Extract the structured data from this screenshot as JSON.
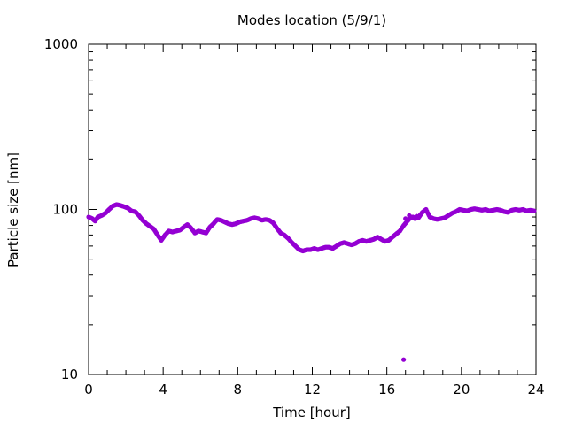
{
  "chart_data": {
    "type": "scatter",
    "title": "Modes location (5/9/1)",
    "xlabel": "Time [hour]",
    "ylabel": "Particle size [nm]",
    "xlim": [
      0,
      24
    ],
    "ylim": [
      10,
      1000
    ],
    "yscale": "log",
    "xticks": [
      "0",
      "4",
      "8",
      "12",
      "16",
      "20",
      "24"
    ],
    "yticks": [
      "10",
      "100",
      "1000"
    ],
    "grid": false,
    "color": "#9400d3",
    "series": [
      {
        "x": [
          0.0,
          0.2,
          0.35,
          0.5,
          0.7,
          0.9,
          1.1,
          1.3,
          1.5,
          1.7,
          1.9,
          2.1,
          2.3,
          2.5,
          2.7,
          2.9,
          3.1,
          3.3,
          3.5,
          3.7,
          3.9,
          4.1,
          4.3,
          4.5,
          4.7,
          4.9,
          5.1,
          5.3,
          5.5,
          5.7,
          5.9,
          6.1,
          6.3,
          6.5,
          6.7,
          6.9,
          7.1,
          7.3,
          7.5,
          7.7,
          7.9,
          8.1,
          8.3,
          8.5,
          8.7,
          8.9,
          9.1,
          9.3,
          9.5,
          9.7,
          9.9,
          10.1,
          10.3,
          10.5,
          10.7,
          10.9,
          11.1,
          11.3,
          11.5,
          11.7,
          11.9,
          12.1,
          12.3,
          12.5,
          12.7,
          12.9,
          13.1,
          13.3,
          13.5,
          13.7,
          13.9,
          14.1,
          14.3,
          14.5,
          14.7,
          14.9,
          15.1,
          15.3,
          15.5,
          15.7,
          15.9,
          16.1,
          16.3,
          16.5,
          16.7,
          16.9,
          17.1,
          17.3,
          17.5,
          17.7,
          17.9,
          18.1,
          18.3,
          18.5,
          18.7,
          18.9,
          19.1,
          19.3,
          19.5,
          19.7,
          19.9,
          20.1,
          20.3,
          20.5,
          20.7,
          20.9,
          21.1,
          21.3,
          21.5,
          21.7,
          21.9,
          22.1,
          22.3,
          22.5,
          22.7,
          22.9,
          23.1,
          23.3,
          23.5,
          23.7,
          23.9
        ],
        "y": [
          90,
          88,
          85,
          90,
          92,
          95,
          100,
          105,
          107,
          106,
          104,
          102,
          98,
          97,
          92,
          86,
          82,
          79,
          76,
          70,
          65,
          70,
          74,
          73,
          74,
          75,
          78,
          81,
          77,
          72,
          74,
          73,
          72,
          78,
          82,
          87,
          86,
          84,
          82,
          81,
          82,
          84,
          85,
          86,
          88,
          89,
          88,
          86,
          87,
          86,
          83,
          77,
          72,
          70,
          67,
          63,
          60,
          57,
          56,
          57,
          57,
          58,
          57,
          58,
          59,
          59,
          58,
          60,
          62,
          63,
          62,
          61,
          62,
          64,
          65,
          64,
          65,
          66,
          68,
          66,
          64,
          65,
          68,
          71,
          74,
          80,
          85,
          90,
          88,
          89,
          96,
          100,
          90,
          88,
          87,
          88,
          89,
          92,
          95,
          97,
          100,
          99,
          98,
          100,
          101,
          100,
          99,
          100,
          98,
          99,
          100,
          99,
          97,
          96,
          99,
          100,
          99,
          100,
          98,
          99,
          98
        ]
      },
      {
        "x": [
          16.9,
          17.0,
          17.2,
          17.4,
          17.6,
          17.8
        ],
        "y": [
          12.3,
          88,
          92,
          90,
          91,
          93
        ]
      }
    ]
  }
}
